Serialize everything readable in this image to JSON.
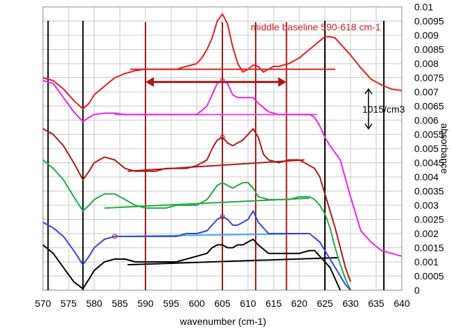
{
  "chart_data": {
    "type": "line",
    "title": "",
    "xlabel": "wavenumber (cm-1)",
    "ylabel": "absorbance",
    "xlim": [
      570,
      640
    ],
    "ylim": [
      0,
      0.01
    ],
    "x_ticks": [
      "570",
      "575",
      "580",
      "585",
      "590",
      "595",
      "600",
      "605",
      "610",
      "615",
      "620",
      "625",
      "630",
      "635",
      "640"
    ],
    "y_ticks": [
      "0",
      "0.0005",
      "0.001",
      "0.0015",
      "0.002",
      "0.0025",
      "0.003",
      "0.0035",
      "0.004",
      "0.0045",
      "0.005",
      "0.0055",
      "0.006",
      "0.0065",
      "0.007",
      "0.0075",
      "0.008",
      "0.0085",
      "0.009",
      "0.0095",
      "0.01"
    ],
    "grid": true,
    "annotations": {
      "baseline_text": "middle baseline 590-618 cm-1",
      "offset_text": "1015/cm3"
    },
    "colors": {
      "red": "#e02020",
      "magenta": "#ee22ee",
      "darkred": "#b01818",
      "green": "#22aa44",
      "blue": "#3344dd",
      "black": "#000000",
      "vline_red": "#a01818",
      "arrow_red": "#b01818",
      "baseline_magenta": "#ee44ee",
      "baseline_blue": "#44aaee"
    },
    "vertical_lines": {
      "black": [
        571,
        577.8,
        625,
        636.5
      ],
      "red": [
        590,
        605,
        611.5,
        617.5
      ]
    },
    "baseline_arrow": [
      590,
      617.5,
      0.00735
    ],
    "offset_arrow": [
      633.5,
      0.0057,
      0.0071
    ],
    "series": [
      {
        "color": "red",
        "x": [
          570,
          572,
          574,
          576,
          577.8,
          579,
          580,
          582,
          584,
          586,
          588,
          590,
          592,
          594,
          596,
          598,
          600,
          601,
          602,
          603,
          604,
          605,
          606,
          607,
          608,
          609,
          610,
          611,
          612,
          613,
          614,
          615,
          616,
          618,
          620,
          622,
          624,
          625,
          626,
          627,
          628,
          630,
          632,
          634,
          636,
          638,
          640
        ],
        "y": [
          0.0075,
          0.0074,
          0.0071,
          0.0067,
          0.0064,
          0.0066,
          0.0069,
          0.0072,
          0.0075,
          0.00765,
          0.00775,
          0.0078,
          0.0078,
          0.0078,
          0.0078,
          0.0079,
          0.008,
          0.0082,
          0.0085,
          0.0089,
          0.0095,
          0.00975,
          0.0094,
          0.0086,
          0.008,
          0.0077,
          0.0078,
          0.00795,
          0.0079,
          0.0077,
          0.0078,
          0.0079,
          0.0079,
          0.008,
          0.0082,
          0.0085,
          0.0088,
          0.00895,
          0.00895,
          0.0089,
          0.0087,
          0.0083,
          0.00785,
          0.00745,
          0.00725,
          0.0071,
          0.00705
        ]
      },
      {
        "color": "magenta",
        "x": [
          570,
          572,
          574,
          576,
          577.8,
          579,
          580,
          582,
          584,
          586,
          588,
          590,
          592,
          594,
          596,
          598,
          600,
          602,
          603,
          604,
          605,
          606,
          607,
          608,
          609,
          610,
          611,
          612,
          614,
          616,
          618,
          620,
          622,
          623,
          624,
          625,
          626,
          628,
          630,
          632,
          634,
          636,
          638,
          640
        ],
        "y": [
          0.0074,
          0.0073,
          0.0068,
          0.0063,
          0.00595,
          0.0061,
          0.0062,
          0.00625,
          0.00625,
          0.0062,
          0.0062,
          0.0062,
          0.0062,
          0.0062,
          0.0062,
          0.0062,
          0.0062,
          0.0065,
          0.0069,
          0.0073,
          0.0074,
          0.0073,
          0.0069,
          0.0068,
          0.0068,
          0.0068,
          0.0068,
          0.0066,
          0.0063,
          0.0062,
          0.0062,
          0.0062,
          0.0062,
          0.0061,
          0.0058,
          0.0054,
          0.0051,
          0.0046,
          0.0033,
          0.0021,
          0.0017,
          0.0014,
          0.0013,
          0.0012
        ]
      },
      {
        "color": "darkred",
        "x": [
          570,
          572,
          574,
          576,
          577.8,
          579,
          580,
          582,
          584,
          586,
          588,
          590,
          592,
          594,
          596,
          598,
          600,
          602,
          603,
          604,
          605,
          606,
          607,
          608,
          609,
          610,
          611,
          612,
          613,
          614,
          616,
          618,
          620,
          621,
          622,
          623,
          624,
          625,
          626,
          627,
          628,
          629,
          630
        ],
        "y": [
          0.0057,
          0.0055,
          0.0051,
          0.0045,
          0.0039,
          0.0042,
          0.0045,
          0.0047,
          0.0046,
          0.0043,
          0.0042,
          0.0042,
          0.0042,
          0.0043,
          0.0043,
          0.0043,
          0.0044,
          0.0046,
          0.005,
          0.0053,
          0.0054,
          0.0052,
          0.0051,
          0.0052,
          0.0053,
          0.0055,
          0.0057,
          0.0054,
          0.0048,
          0.0046,
          0.0045,
          0.0046,
          0.0046,
          0.0045,
          0.0044,
          0.0043,
          0.004,
          0.0034,
          0.0028,
          0.0022,
          0.0015,
          0.0008,
          0.0003
        ]
      },
      {
        "color": "green",
        "x": [
          570,
          572,
          574,
          576,
          577.8,
          579,
          580,
          582,
          584,
          586,
          588,
          590,
          592,
          594,
          596,
          598,
          600,
          602,
          604,
          605,
          606,
          607,
          608,
          609,
          610,
          611,
          612,
          614,
          616,
          618,
          620,
          622,
          623,
          624,
          625,
          626,
          627,
          628,
          629,
          630
        ],
        "y": [
          0.0046,
          0.0043,
          0.0039,
          0.0033,
          0.0028,
          0.003,
          0.0032,
          0.0034,
          0.0034,
          0.0032,
          0.003,
          0.0029,
          0.0029,
          0.0029,
          0.003,
          0.003,
          0.003,
          0.0032,
          0.0037,
          0.0038,
          0.0037,
          0.0036,
          0.0037,
          0.0038,
          0.0038,
          0.0036,
          0.0033,
          0.0032,
          0.0032,
          0.0032,
          0.0033,
          0.0033,
          0.0032,
          0.003,
          0.0027,
          0.0022,
          0.0015,
          0.0009,
          0.0004,
          0.0
        ]
      },
      {
        "color": "blue",
        "x": [
          570,
          572,
          574,
          576,
          577.8,
          579,
          580,
          582,
          584,
          586,
          588,
          590,
          592,
          594,
          596,
          598,
          600,
          602,
          604,
          605,
          606,
          607,
          608,
          609,
          610,
          611,
          612,
          614,
          616,
          618,
          620,
          622,
          624,
          625,
          626,
          627,
          628,
          629,
          630
        ],
        "y": [
          0.0024,
          0.0022,
          0.0019,
          0.0014,
          0.0009,
          0.0012,
          0.0015,
          0.0018,
          0.0019,
          0.0019,
          0.0019,
          0.0019,
          0.0019,
          0.0019,
          0.0019,
          0.002,
          0.002,
          0.0021,
          0.0025,
          0.0026,
          0.0025,
          0.0023,
          0.0023,
          0.0024,
          0.0025,
          0.0028,
          0.0024,
          0.002,
          0.002,
          0.002,
          0.002,
          0.002,
          0.0017,
          0.0014,
          0.0011,
          0.0008,
          0.0005,
          0.0002,
          0.0
        ]
      },
      {
        "color": "black",
        "x": [
          570,
          572,
          574,
          576,
          577.8,
          579,
          580,
          582,
          584,
          586,
          588,
          590,
          592,
          594,
          596,
          598,
          600,
          602,
          603,
          604,
          605,
          606,
          607,
          608,
          609,
          610,
          611,
          612,
          614,
          616,
          618,
          620,
          622,
          623,
          624,
          625,
          626,
          627,
          628
        ],
        "y": [
          0.0016,
          0.0013,
          0.0008,
          0.0003,
          5e-05,
          0.0004,
          0.0007,
          0.001,
          0.0011,
          0.0011,
          0.001,
          0.001,
          0.001,
          0.001,
          0.001,
          0.0011,
          0.0012,
          0.0013,
          0.0015,
          0.0016,
          0.0016,
          0.0015,
          0.0015,
          0.0016,
          0.0016,
          0.0017,
          0.0018,
          0.0016,
          0.0013,
          0.0013,
          0.0013,
          0.0013,
          0.0014,
          0.0014,
          0.0012,
          0.001,
          0.0008,
          0.0004,
          0.0
        ]
      }
    ],
    "baselines": [
      {
        "color": "red",
        "x": [
          587,
          627
        ],
        "y": [
          0.0078,
          0.0078
        ]
      },
      {
        "color": "baseline_magenta",
        "x": [
          584,
          623.5
        ],
        "y": [
          0.0062,
          0.0062
        ]
      },
      {
        "color": "darkred",
        "x": [
          586.5,
          621
        ],
        "y": [
          0.0042,
          0.0046
        ]
      },
      {
        "color": "green",
        "x": [
          582,
          622
        ],
        "y": [
          0.0029,
          0.00325
        ]
      },
      {
        "color": "baseline_blue",
        "x": [
          585,
          622
        ],
        "y": [
          0.0019,
          0.002
        ]
      },
      {
        "color": "black",
        "x": [
          586.5,
          627.5
        ],
        "y": [
          0.0009,
          0.00115
        ]
      }
    ],
    "markers": [
      {
        "color": "darkred",
        "x": 605,
        "y": 0.0074
      },
      {
        "color": "darkred",
        "x": 605,
        "y": 0.0054
      },
      {
        "color": "darkred",
        "x": 605,
        "y": 0.0026
      },
      {
        "color": "darkred",
        "x": 584,
        "y": 0.0019
      }
    ]
  }
}
